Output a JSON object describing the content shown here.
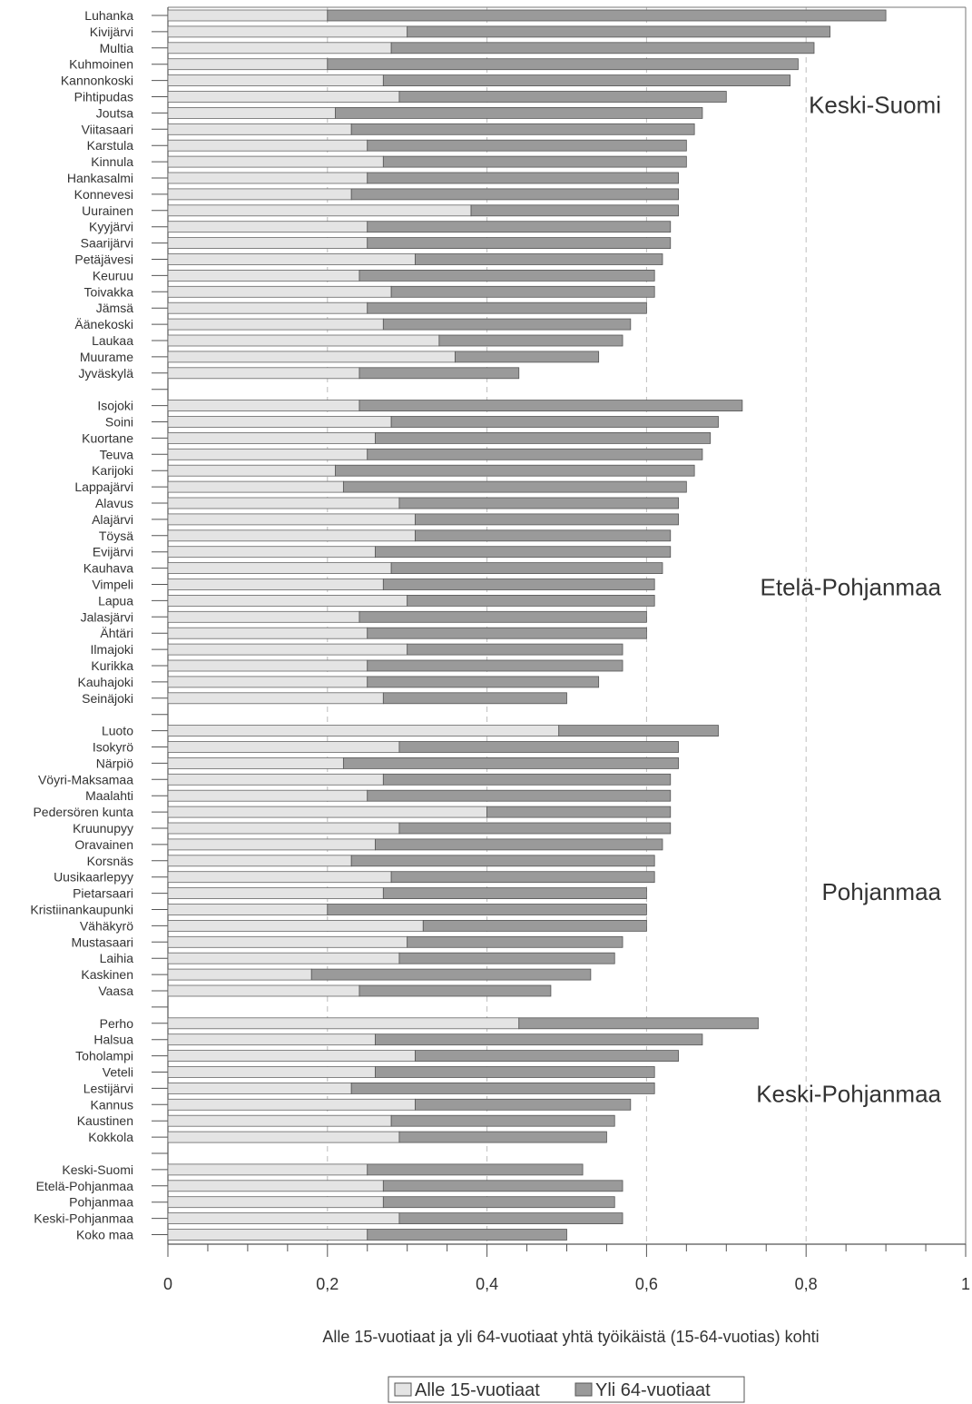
{
  "chart_data": {
    "type": "bar",
    "orientation": "horizontal",
    "stacked": true,
    "xlabel": "Alle 15-vuotiaat ja yli 64-vuotiaat yhtä työikäistä (15-64-vuotias) kohti",
    "xlim": [
      0,
      1
    ],
    "xticks": [
      "0",
      "0,2",
      "0,4",
      "0,6",
      "0,8",
      "1"
    ],
    "gridlines": "dashed vertical at 0,2 / 0,4 / 0,6 / 0,8",
    "legend": {
      "placement": "bottom-center"
    },
    "series_meta": [
      {
        "name": "Alle 15-vuotiaat",
        "color": "#e4e4e4"
      },
      {
        "name": "Yli 64-vuotiaat",
        "color": "#9a9a9a"
      }
    ],
    "groups": [
      {
        "region": "Keski-Suomi",
        "rows": [
          {
            "name": "Luhanka",
            "under15": 0.2,
            "total": 0.9
          },
          {
            "name": "Kivijärvi",
            "under15": 0.3,
            "total": 0.83
          },
          {
            "name": "Multia",
            "under15": 0.28,
            "total": 0.81
          },
          {
            "name": "Kuhmoinen",
            "under15": 0.2,
            "total": 0.79
          },
          {
            "name": "Kannonkoski",
            "under15": 0.27,
            "total": 0.78
          },
          {
            "name": "Pihtipudas",
            "under15": 0.29,
            "total": 0.7
          },
          {
            "name": "Joutsa",
            "under15": 0.21,
            "total": 0.67
          },
          {
            "name": "Viitasaari",
            "under15": 0.23,
            "total": 0.66
          },
          {
            "name": "Karstula",
            "under15": 0.25,
            "total": 0.65
          },
          {
            "name": "Kinnula",
            "under15": 0.27,
            "total": 0.65
          },
          {
            "name": "Hankasalmi",
            "under15": 0.25,
            "total": 0.64
          },
          {
            "name": "Konnevesi",
            "under15": 0.23,
            "total": 0.64
          },
          {
            "name": "Uurainen",
            "under15": 0.38,
            "total": 0.64
          },
          {
            "name": "Kyyjärvi",
            "under15": 0.25,
            "total": 0.63
          },
          {
            "name": "Saarijärvi",
            "under15": 0.25,
            "total": 0.63
          },
          {
            "name": "Petäjävesi",
            "under15": 0.31,
            "total": 0.62
          },
          {
            "name": "Keuruu",
            "under15": 0.24,
            "total": 0.61
          },
          {
            "name": "Toivakka",
            "under15": 0.28,
            "total": 0.61
          },
          {
            "name": "Jämsä",
            "under15": 0.25,
            "total": 0.6
          },
          {
            "name": "Äänekoski",
            "under15": 0.27,
            "total": 0.58
          },
          {
            "name": "Laukaa",
            "under15": 0.34,
            "total": 0.57
          },
          {
            "name": "Muurame",
            "under15": 0.36,
            "total": 0.54
          },
          {
            "name": "Jyväskylä",
            "under15": 0.24,
            "total": 0.44
          }
        ]
      },
      {
        "region": "Etelä-Pohjanmaa",
        "rows": [
          {
            "name": "Isojoki",
            "under15": 0.24,
            "total": 0.72
          },
          {
            "name": "Soini",
            "under15": 0.28,
            "total": 0.69
          },
          {
            "name": "Kuortane",
            "under15": 0.26,
            "total": 0.68
          },
          {
            "name": "Teuva",
            "under15": 0.25,
            "total": 0.67
          },
          {
            "name": "Karijoki",
            "under15": 0.21,
            "total": 0.66
          },
          {
            "name": "Lappajärvi",
            "under15": 0.22,
            "total": 0.65
          },
          {
            "name": "Alavus",
            "under15": 0.29,
            "total": 0.64
          },
          {
            "name": "Alajärvi",
            "under15": 0.31,
            "total": 0.64
          },
          {
            "name": "Töysä",
            "under15": 0.31,
            "total": 0.63
          },
          {
            "name": "Evijärvi",
            "under15": 0.26,
            "total": 0.63
          },
          {
            "name": "Kauhava",
            "under15": 0.28,
            "total": 0.62
          },
          {
            "name": "Vimpeli",
            "under15": 0.27,
            "total": 0.61
          },
          {
            "name": "Lapua",
            "under15": 0.3,
            "total": 0.61
          },
          {
            "name": "Jalasjärvi",
            "under15": 0.24,
            "total": 0.6
          },
          {
            "name": "Ähtäri",
            "under15": 0.25,
            "total": 0.6
          },
          {
            "name": "Ilmajoki",
            "under15": 0.3,
            "total": 0.57
          },
          {
            "name": "Kurikka",
            "under15": 0.25,
            "total": 0.57
          },
          {
            "name": "Kauhajoki",
            "under15": 0.25,
            "total": 0.54
          },
          {
            "name": "Seinäjoki",
            "under15": 0.27,
            "total": 0.5
          }
        ]
      },
      {
        "region": "Pohjanmaa",
        "rows": [
          {
            "name": "Luoto",
            "under15": 0.49,
            "total": 0.69
          },
          {
            "name": "Isokyrö",
            "under15": 0.29,
            "total": 0.64
          },
          {
            "name": "Närpiö",
            "under15": 0.22,
            "total": 0.64
          },
          {
            "name": "Vöyri-Maksamaa",
            "under15": 0.27,
            "total": 0.63
          },
          {
            "name": "Maalahti",
            "under15": 0.25,
            "total": 0.63
          },
          {
            "name": "Pedersören kunta",
            "under15": 0.4,
            "total": 0.63
          },
          {
            "name": "Kruunupyy",
            "under15": 0.29,
            "total": 0.63
          },
          {
            "name": "Oravainen",
            "under15": 0.26,
            "total": 0.62
          },
          {
            "name": "Korsnäs",
            "under15": 0.23,
            "total": 0.61
          },
          {
            "name": "Uusikaarlepyy",
            "under15": 0.28,
            "total": 0.61
          },
          {
            "name": "Pietarsaari",
            "under15": 0.27,
            "total": 0.6
          },
          {
            "name": "Kristiinankaupunki",
            "under15": 0.2,
            "total": 0.6
          },
          {
            "name": "Vähäkyrö",
            "under15": 0.32,
            "total": 0.6
          },
          {
            "name": "Mustasaari",
            "under15": 0.3,
            "total": 0.57
          },
          {
            "name": "Laihia",
            "under15": 0.29,
            "total": 0.56
          },
          {
            "name": "Kaskinen",
            "under15": 0.18,
            "total": 0.53
          },
          {
            "name": "Vaasa",
            "under15": 0.24,
            "total": 0.48
          }
        ]
      },
      {
        "region": "Keski-Pohjanmaa",
        "rows": [
          {
            "name": "Perho",
            "under15": 0.44,
            "total": 0.74
          },
          {
            "name": "Halsua",
            "under15": 0.26,
            "total": 0.67
          },
          {
            "name": "Toholampi",
            "under15": 0.31,
            "total": 0.64
          },
          {
            "name": "Veteli",
            "under15": 0.26,
            "total": 0.61
          },
          {
            "name": "Lestijärvi",
            "under15": 0.23,
            "total": 0.61
          },
          {
            "name": "Kannus",
            "under15": 0.31,
            "total": 0.58
          },
          {
            "name": "Kaustinen",
            "under15": 0.28,
            "total": 0.56
          },
          {
            "name": "Kokkola",
            "under15": 0.29,
            "total": 0.55
          }
        ]
      },
      {
        "region": "",
        "rows": [
          {
            "name": "Keski-Suomi",
            "under15": 0.25,
            "total": 0.52
          },
          {
            "name": "Etelä-Pohjanmaa",
            "under15": 0.27,
            "total": 0.57
          },
          {
            "name": "Pohjanmaa",
            "under15": 0.27,
            "total": 0.56
          },
          {
            "name": "Keski-Pohjanmaa",
            "under15": 0.29,
            "total": 0.57
          },
          {
            "name": "Koko maa",
            "under15": 0.25,
            "total": 0.5
          }
        ]
      }
    ]
  }
}
